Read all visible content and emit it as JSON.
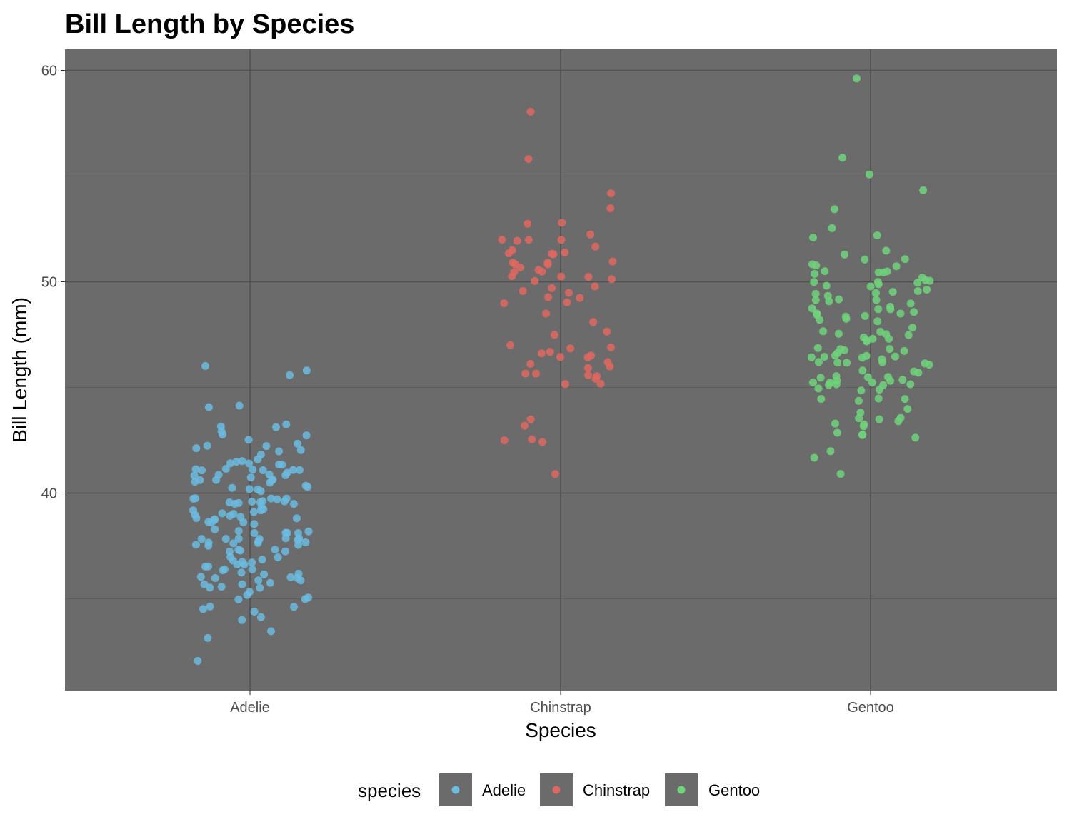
{
  "chart_data": {
    "type": "scatter",
    "subtype": "jitter",
    "title": "Bill Length by Species",
    "xlabel": "Species",
    "ylabel": "Bill Length (mm)",
    "categories": [
      "Adelie",
      "Chinstrap",
      "Gentoo"
    ],
    "ylim": [
      30.7,
      61.0
    ],
    "y_ticks": [
      40,
      50,
      60
    ],
    "grid": true,
    "panel_background": "#6b6b6b",
    "legend": {
      "title": "species",
      "position": "bottom"
    },
    "series": [
      {
        "name": "Adelie",
        "color": "#6bbbe0",
        "values": [
          39.1,
          39.5,
          40.3,
          36.7,
          39.3,
          38.9,
          39.2,
          34.1,
          42.0,
          37.8,
          37.8,
          41.1,
          38.6,
          34.6,
          36.6,
          38.7,
          42.5,
          34.4,
          46.0,
          37.8,
          37.7,
          35.9,
          38.2,
          38.8,
          35.3,
          40.6,
          40.5,
          37.9,
          40.5,
          39.5,
          37.2,
          39.5,
          40.9,
          36.4,
          39.2,
          38.8,
          42.2,
          37.6,
          39.8,
          36.5,
          40.8,
          36.0,
          44.1,
          37.0,
          39.6,
          41.1,
          37.5,
          36.0,
          42.3,
          39.6,
          40.1,
          35.0,
          42.0,
          34.5,
          41.4,
          39.0,
          40.6,
          36.5,
          37.6,
          35.7,
          41.3,
          37.6,
          41.1,
          36.4,
          41.6,
          35.5,
          41.1,
          35.9,
          41.8,
          33.5,
          39.7,
          39.6,
          45.8,
          35.5,
          42.8,
          40.9,
          37.2,
          36.2,
          42.1,
          34.6,
          42.9,
          36.7,
          35.1,
          37.3,
          41.3,
          36.3,
          36.9,
          38.3,
          38.9,
          35.7,
          41.1,
          34.0,
          39.6,
          36.2,
          40.8,
          38.1,
          40.3,
          33.1,
          43.2,
          35.0,
          41.0,
          37.7,
          37.8,
          37.9,
          39.7,
          38.6,
          38.2,
          38.1,
          43.2,
          38.1,
          45.6,
          39.7,
          42.2,
          39.6,
          42.7,
          38.6,
          37.3,
          35.7,
          41.1,
          36.2,
          37.7,
          40.2,
          41.4,
          35.2,
          40.6,
          38.8,
          41.5,
          39.0,
          44.1,
          38.5,
          43.1,
          36.8,
          37.5,
          38.1,
          41.1,
          35.6,
          40.2,
          37.0,
          39.7,
          40.2,
          40.6,
          32.1,
          40.7,
          37.3,
          39.0,
          39.2,
          36.6,
          36.0,
          37.8,
          36.0,
          41.5
        ]
      },
      {
        "name": "Chinstrap",
        "color": "#e0675f",
        "values": [
          46.5,
          50.0,
          51.3,
          45.4,
          52.7,
          45.2,
          46.1,
          51.3,
          46.0,
          51.3,
          46.6,
          51.7,
          47.0,
          52.0,
          45.9,
          50.5,
          50.3,
          58.0,
          46.4,
          49.2,
          42.4,
          48.5,
          43.2,
          50.6,
          46.7,
          52.0,
          50.5,
          49.5,
          46.4,
          52.8,
          40.9,
          54.2,
          42.5,
          51.0,
          49.7,
          47.5,
          47.6,
          52.0,
          46.9,
          53.5,
          49.0,
          46.2,
          50.9,
          45.5,
          50.9,
          50.8,
          50.1,
          49.0,
          51.5,
          49.8,
          48.1,
          51.4,
          45.7,
          50.7,
          42.5,
          52.2,
          45.2,
          49.3,
          50.2,
          45.6,
          51.9,
          46.8,
          45.7,
          55.8,
          43.5,
          49.6,
          50.8,
          50.2
        ]
      },
      {
        "name": "Gentoo",
        "color": "#6ed47a",
        "values": [
          46.1,
          50.0,
          48.7,
          50.0,
          47.6,
          46.5,
          45.4,
          46.7,
          43.3,
          46.8,
          40.9,
          49.0,
          45.5,
          48.4,
          45.8,
          49.3,
          42.0,
          49.2,
          46.2,
          48.7,
          50.2,
          45.1,
          46.5,
          46.3,
          42.9,
          46.1,
          44.5,
          47.8,
          48.2,
          50.0,
          47.3,
          42.8,
          45.1,
          59.6,
          49.1,
          48.4,
          42.6,
          44.4,
          44.0,
          48.7,
          42.7,
          49.6,
          45.3,
          49.6,
          50.5,
          43.6,
          45.5,
          50.5,
          44.9,
          45.2,
          46.6,
          48.5,
          45.1,
          50.1,
          46.5,
          45.0,
          43.8,
          45.5,
          43.2,
          50.4,
          45.3,
          46.2,
          45.7,
          54.3,
          45.8,
          49.8,
          46.2,
          49.5,
          43.5,
          50.7,
          47.7,
          46.4,
          48.2,
          46.5,
          46.4,
          48.6,
          47.5,
          51.1,
          45.2,
          45.2,
          49.1,
          52.5,
          47.4,
          50.0,
          44.9,
          50.8,
          43.4,
          51.3,
          47.5,
          52.1,
          47.5,
          52.2,
          45.5,
          49.5,
          44.5,
          50.8,
          49.4,
          46.9,
          48.4,
          51.1,
          48.5,
          55.9,
          47.2,
          49.1,
          47.3,
          46.8,
          41.7,
          53.4,
          43.3,
          48.1,
          50.5,
          49.8,
          43.5,
          51.5,
          46.2,
          55.1,
          44.5,
          48.8,
          47.2,
          46.8,
          50.4,
          45.2,
          49.9
        ]
      }
    ]
  }
}
